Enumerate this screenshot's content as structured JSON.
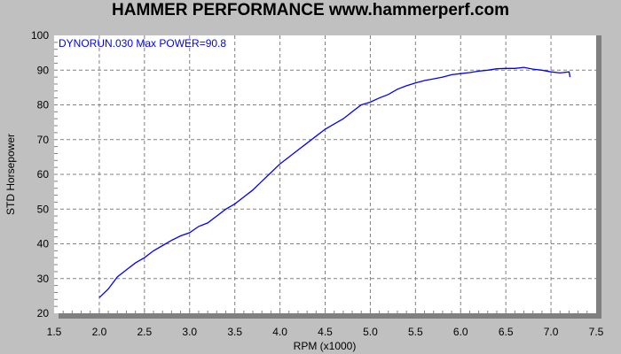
{
  "chart_data": {
    "type": "line",
    "title": "HAMMER PERFORMANCE www.hammerperf.com",
    "xlabel": "RPM (x1000)",
    "ylabel": "STD Horsepower",
    "annotation": "DYNORUN.030  Max POWER=90.8",
    "xlim": [
      1.5,
      7.5
    ],
    "ylim": [
      20,
      100
    ],
    "xticks": [
      "1.5",
      "2.0",
      "2.5",
      "3.0",
      "3.5",
      "4.0",
      "4.5",
      "5.0",
      "5.5",
      "6.0",
      "6.5",
      "7.0",
      "7.5"
    ],
    "yticks": [
      "20",
      "30",
      "40",
      "50",
      "60",
      "70",
      "80",
      "90",
      "100"
    ],
    "grid": true,
    "colors": {
      "series": "#0000ff",
      "background": "#c0c0c0",
      "plot": "#ffffff",
      "grid": "#808080"
    },
    "series": [
      {
        "x": [
          2.0,
          2.1,
          2.2,
          2.3,
          2.4,
          2.5,
          2.6,
          2.7,
          2.8,
          2.9,
          3.0,
          3.1,
          3.2,
          3.3,
          3.4,
          3.5,
          3.6,
          3.7,
          3.8,
          3.9,
          4.0,
          4.1,
          4.2,
          4.3,
          4.4,
          4.5,
          4.6,
          4.7,
          4.8,
          4.9,
          5.0,
          5.1,
          5.2,
          5.3,
          5.4,
          5.5,
          5.6,
          5.7,
          5.8,
          5.9,
          6.0,
          6.1,
          6.2,
          6.3,
          6.4,
          6.5,
          6.6,
          6.7,
          6.8,
          6.9,
          7.0,
          7.1,
          7.2,
          7.21
        ],
        "y": [
          24.5,
          27,
          30.5,
          32.5,
          34.5,
          36,
          38,
          39.5,
          41,
          42.3,
          43.2,
          45,
          46,
          48,
          50,
          51.5,
          53.5,
          55.5,
          58,
          60.5,
          63,
          65,
          67,
          69,
          71,
          73,
          74.5,
          76,
          78,
          80,
          80.8,
          82,
          83,
          84.5,
          85.5,
          86.3,
          87,
          87.5,
          88,
          88.7,
          89,
          89.3,
          89.7,
          90,
          90.4,
          90.5,
          90.5,
          90.8,
          90.3,
          90,
          89.5,
          89.2,
          89.5,
          88
        ]
      }
    ]
  }
}
